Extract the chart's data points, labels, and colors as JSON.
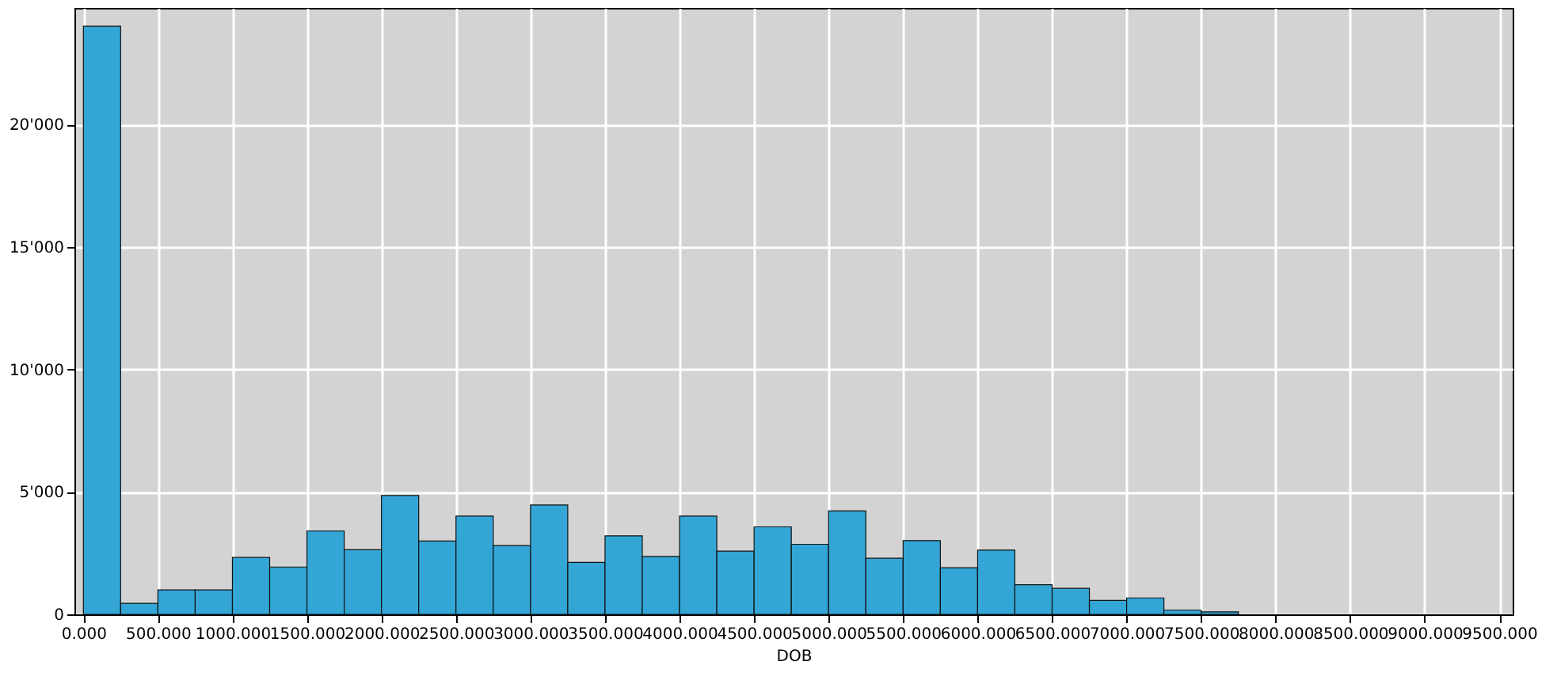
{
  "chart_data": {
    "type": "histogram",
    "xlabel": "DOB",
    "bins": [
      0,
      250,
      500,
      750,
      1000,
      1250,
      1500,
      1750,
      2000,
      2250,
      2500,
      2750,
      3000,
      3250,
      3500,
      3750,
      4000,
      4250,
      4500,
      4750,
      5000,
      5250,
      5500,
      5750,
      6000,
      6250,
      6500,
      6750,
      7000,
      7250,
      7500,
      7750
    ],
    "values": [
      24000,
      450,
      1000,
      1000,
      2320,
      1930,
      3400,
      2640,
      4850,
      2990,
      4010,
      2810,
      4460,
      2120,
      3200,
      2360,
      4010,
      2580,
      3570,
      2860,
      4220,
      2290,
      3010,
      1900,
      2620,
      1210,
      1060,
      570,
      670,
      170,
      100
    ],
    "color": "#33a6d6",
    "xlim": [
      -60,
      9590
    ],
    "xticks": [
      {
        "value": 0,
        "label": "0.000"
      },
      {
        "value": 500,
        "label": "500.000"
      },
      {
        "value": 1000,
        "label": "1000.000"
      },
      {
        "value": 1500,
        "label": "1500.000"
      },
      {
        "value": 2000,
        "label": "2000.000"
      },
      {
        "value": 2500,
        "label": "2500.000"
      },
      {
        "value": 3000,
        "label": "3000.000"
      },
      {
        "value": 3500,
        "label": "3500.000"
      },
      {
        "value": 4000,
        "label": "4000.000"
      },
      {
        "value": 4500,
        "label": "4500.000"
      },
      {
        "value": 5000,
        "label": "5000.000"
      },
      {
        "value": 5500,
        "label": "5500.000"
      },
      {
        "value": 6000,
        "label": "6000.000"
      },
      {
        "value": 6500,
        "label": "6500.000"
      },
      {
        "value": 7000,
        "label": "7000.000"
      },
      {
        "value": 7500,
        "label": "7500.000"
      },
      {
        "value": 8000,
        "label": "8000.000"
      },
      {
        "value": 8500,
        "label": "8500.000"
      },
      {
        "value": 9000,
        "label": "9000.000"
      },
      {
        "value": 9500,
        "label": "9500.000"
      }
    ],
    "ylim": [
      0,
      24750
    ],
    "yticks": [
      0,
      {
        "value": 5000,
        "label": "5'000"
      },
      {
        "value": 10000,
        "label": "10'000"
      },
      {
        "value": 15000,
        "label": "15'000"
      },
      {
        "value": 20000,
        "label": "20'000"
      }
    ],
    "grid": true
  }
}
